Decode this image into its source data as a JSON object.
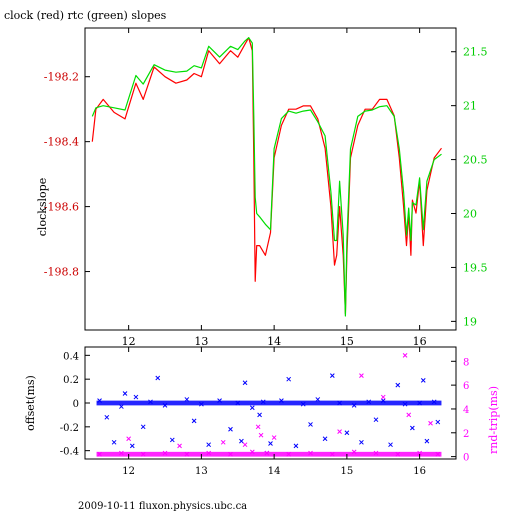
{
  "title": "clock (red) rtc (green) slopes",
  "footer": "2009-10-11 fluxon.physics.ubc.ca",
  "colors": {
    "clock": "#ff0000",
    "rtc": "#00dd00",
    "offset": "#0000ff",
    "rndtrip": "#ff00ff",
    "axis": "#000000"
  },
  "chart_data": [
    {
      "type": "line",
      "title": "clock (red) rtc (green) slopes",
      "xlabel": "",
      "ylabel": "clockslope",
      "ylabel_right": "",
      "xlim": [
        11.4,
        16.5
      ],
      "ylim": [
        -198.98,
        -198.05
      ],
      "ylim_right": [
        18.92,
        21.72
      ],
      "x_ticks": [
        12,
        13,
        14,
        15,
        16
      ],
      "x_tick_labels": [
        "12",
        "13",
        "14",
        "15",
        "16"
      ],
      "y_ticks": [
        -198.2,
        -198.4,
        -198.6,
        -198.8
      ],
      "y_tick_labels": [
        "-198.2",
        "-198.4",
        "-198.6",
        "-198.8"
      ],
      "y_right_ticks": [
        21.5,
        21,
        20.5,
        20,
        19.5,
        19
      ],
      "y_right_tick_labels": [
        "21.5",
        "21",
        "20.5",
        "20",
        "19.5",
        "19"
      ],
      "series": [
        {
          "name": "clock",
          "axis": "left",
          "x": [
            11.5,
            11.55,
            11.65,
            11.8,
            11.95,
            12.1,
            12.2,
            12.35,
            12.5,
            12.65,
            12.8,
            12.9,
            13.0,
            13.1,
            13.25,
            13.4,
            13.5,
            13.6,
            13.65,
            13.7,
            13.72,
            13.74,
            13.76,
            13.8,
            13.88,
            13.95,
            14.0,
            14.1,
            14.2,
            14.3,
            14.4,
            14.5,
            14.6,
            14.7,
            14.78,
            14.83,
            14.86,
            14.9,
            14.95,
            14.98,
            15.0,
            15.05,
            15.15,
            15.25,
            15.35,
            15.45,
            15.55,
            15.65,
            15.72,
            15.78,
            15.82,
            15.85,
            15.88,
            15.9,
            15.95,
            16.0,
            16.05,
            16.1,
            16.15,
            16.2,
            16.3
          ],
          "y": [
            -198.4,
            -198.3,
            -198.27,
            -198.31,
            -198.33,
            -198.22,
            -198.27,
            -198.17,
            -198.2,
            -198.22,
            -198.21,
            -198.19,
            -198.2,
            -198.12,
            -198.16,
            -198.12,
            -198.14,
            -198.1,
            -198.08,
            -198.12,
            -198.45,
            -198.83,
            -198.72,
            -198.72,
            -198.75,
            -198.68,
            -198.45,
            -198.35,
            -198.3,
            -198.3,
            -198.29,
            -198.29,
            -198.33,
            -198.42,
            -198.6,
            -198.78,
            -198.75,
            -198.6,
            -198.75,
            -198.93,
            -198.75,
            -198.45,
            -198.35,
            -198.3,
            -198.3,
            -198.27,
            -198.27,
            -198.32,
            -198.45,
            -198.6,
            -198.72,
            -198.62,
            -198.75,
            -198.58,
            -198.62,
            -198.52,
            -198.72,
            -198.55,
            -198.5,
            -198.45,
            -198.42
          ]
        },
        {
          "name": "rtc",
          "axis": "right",
          "x": [
            11.5,
            11.55,
            11.65,
            11.8,
            11.95,
            12.1,
            12.2,
            12.35,
            12.5,
            12.65,
            12.8,
            12.9,
            13.0,
            13.1,
            13.25,
            13.4,
            13.5,
            13.6,
            13.65,
            13.7,
            13.72,
            13.74,
            13.76,
            13.8,
            13.88,
            13.95,
            14.0,
            14.1,
            14.2,
            14.3,
            14.4,
            14.5,
            14.6,
            14.7,
            14.78,
            14.83,
            14.86,
            14.9,
            14.95,
            14.98,
            15.0,
            15.05,
            15.15,
            15.25,
            15.35,
            15.45,
            15.55,
            15.65,
            15.72,
            15.78,
            15.82,
            15.85,
            15.88,
            15.9,
            15.95,
            16.0,
            16.05,
            16.1,
            16.15,
            16.2,
            16.3
          ],
          "y": [
            20.9,
            20.98,
            21.0,
            20.98,
            20.96,
            21.28,
            21.2,
            21.38,
            21.33,
            21.31,
            21.32,
            21.37,
            21.35,
            21.55,
            21.45,
            21.55,
            21.52,
            21.6,
            21.63,
            21.58,
            20.9,
            20.15,
            20.0,
            19.97,
            19.9,
            19.85,
            20.6,
            20.88,
            20.95,
            20.93,
            20.95,
            20.96,
            20.85,
            20.72,
            20.2,
            19.75,
            19.75,
            20.3,
            19.8,
            19.05,
            19.75,
            20.6,
            20.9,
            20.95,
            20.96,
            20.99,
            21.0,
            20.9,
            20.6,
            20.2,
            19.8,
            20.05,
            19.75,
            20.1,
            20.08,
            20.33,
            19.85,
            20.3,
            20.4,
            20.5,
            20.55
          ]
        }
      ]
    },
    {
      "type": "scatter",
      "xlabel": "",
      "ylabel": "offset(ms)",
      "ylabel_right": "rnd-trip(ms)",
      "xlim": [
        11.4,
        16.5
      ],
      "ylim": [
        -0.47,
        0.47
      ],
      "ylim_right": [
        -0.2,
        9.2
      ],
      "x_ticks": [
        12,
        13,
        14,
        15,
        16
      ],
      "x_tick_labels": [
        "12",
        "13",
        "14",
        "15",
        "16"
      ],
      "y_ticks": [
        0.4,
        0.2,
        0,
        -0.2,
        -0.4
      ],
      "y_tick_labels": [
        "0.4",
        "0.2",
        "0",
        "-0.2",
        "-0.4"
      ],
      "y_right_ticks": [
        8,
        6,
        4,
        2,
        0
      ],
      "y_right_tick_labels": [
        "8",
        "6",
        "4",
        "2",
        "0"
      ],
      "series": [
        {
          "name": "offset",
          "axis": "left",
          "marker": "x",
          "x": [
            11.6,
            11.9,
            12.1,
            12.3,
            12.5,
            12.8,
            13.0,
            13.25,
            13.5,
            13.7,
            13.85,
            14.1,
            14.4,
            14.6,
            14.9,
            15.1,
            15.3,
            15.5,
            15.8,
            16.0,
            16.2,
            11.8,
            12.05,
            12.6,
            13.1,
            13.55,
            13.95,
            14.3,
            14.7,
            15.2,
            15.6,
            16.1,
            11.7,
            12.2,
            12.9,
            13.4,
            13.8,
            14.5,
            15.0,
            15.4,
            15.9,
            16.25,
            11.95,
            12.4,
            13.6,
            14.2,
            14.8,
            15.7,
            16.05,
            13.9
          ],
          "y": [
            0.02,
            -0.03,
            0.05,
            0.01,
            -0.02,
            0.03,
            -0.01,
            0.02,
            0.0,
            -0.04,
            0.01,
            0.02,
            -0.01,
            0.03,
            0.0,
            -0.02,
            0.01,
            0.02,
            -0.01,
            0.0,
            0.01,
            -0.33,
            -0.36,
            -0.31,
            -0.35,
            -0.32,
            -0.34,
            -0.36,
            -0.3,
            -0.33,
            -0.35,
            -0.32,
            -0.12,
            -0.2,
            -0.15,
            -0.22,
            -0.1,
            -0.18,
            -0.25,
            -0.14,
            -0.21,
            -0.16,
            0.08,
            0.21,
            0.17,
            0.2,
            0.23,
            0.15,
            0.19,
            -0.42
          ]
        },
        {
          "name": "rnd-trip",
          "axis": "right",
          "marker": "x",
          "x": [
            11.6,
            11.9,
            12.2,
            12.5,
            12.8,
            13.1,
            13.4,
            13.7,
            13.78,
            13.82,
            13.9,
            14.2,
            14.5,
            14.8,
            15.1,
            15.4,
            15.7,
            16.0,
            16.25,
            12.0,
            13.3,
            14.0,
            15.2,
            15.8,
            15.85,
            14.9,
            15.5,
            12.7,
            16.15,
            13.6
          ],
          "y": [
            0.2,
            0.3,
            0.2,
            0.3,
            0.2,
            0.3,
            0.2,
            0.4,
            2.5,
            1.8,
            0.3,
            0.2,
            0.3,
            0.2,
            0.4,
            0.3,
            0.2,
            0.3,
            0.2,
            1.5,
            1.2,
            1.6,
            6.8,
            8.5,
            3.5,
            2.1,
            5.0,
            0.9,
            2.8,
            1.0
          ]
        }
      ]
    }
  ]
}
